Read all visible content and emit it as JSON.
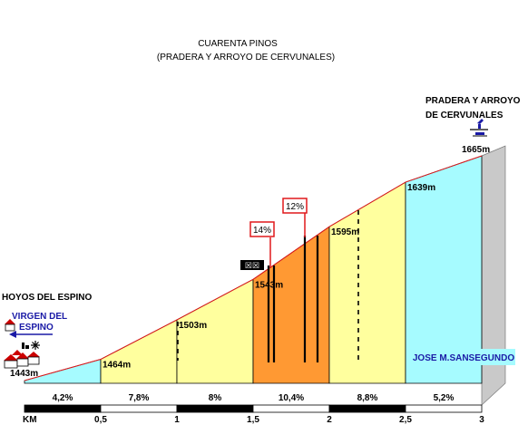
{
  "title": {
    "line1": "CUARENTA PINOS",
    "line2": "(PRADERA Y ARROYO DE CERVUNALES)"
  },
  "start": {
    "name": "HOYOS DEL ESPINO",
    "sign_line1": "VIRGEN DEL",
    "sign_line2": "ESPINO",
    "altitude": "1443m"
  },
  "end": {
    "name_line1": "PRADERA Y ARROYO",
    "name_line2": "DE CERVUNALES",
    "altitude": "1665m"
  },
  "author": "JOSE M.SANSEGUNDO",
  "axis": {
    "unit": "KM",
    "ticks": [
      "0,5",
      "1",
      "1,5",
      "2",
      "2,5",
      "3"
    ]
  },
  "chart_data": {
    "type": "area",
    "x": [
      0,
      0.5,
      1.0,
      1.5,
      2.0,
      2.5,
      3.0
    ],
    "altitudes": [
      1443,
      1464,
      1503,
      1543,
      1595,
      1639,
      1665
    ],
    "altitude_labels": [
      "1443m",
      "1464m",
      "1503m",
      "1543m",
      "1595m",
      "1639m",
      "1665m"
    ],
    "segment_gradients": [
      "4,2%",
      "7,8%",
      "8%",
      "10,4%",
      "8,8%",
      "5,2%"
    ],
    "segment_colors": [
      "#a6fbff",
      "#ffff9e",
      "#ffff9e",
      "#ff9933",
      "#ffff9e",
      "#a6fbff"
    ],
    "max_gradients": [
      {
        "label": "14%",
        "km_from": 1.6,
        "km_to": 1.62
      },
      {
        "label": "12%",
        "km_from": 1.84,
        "km_to": 1.84
      }
    ]
  }
}
